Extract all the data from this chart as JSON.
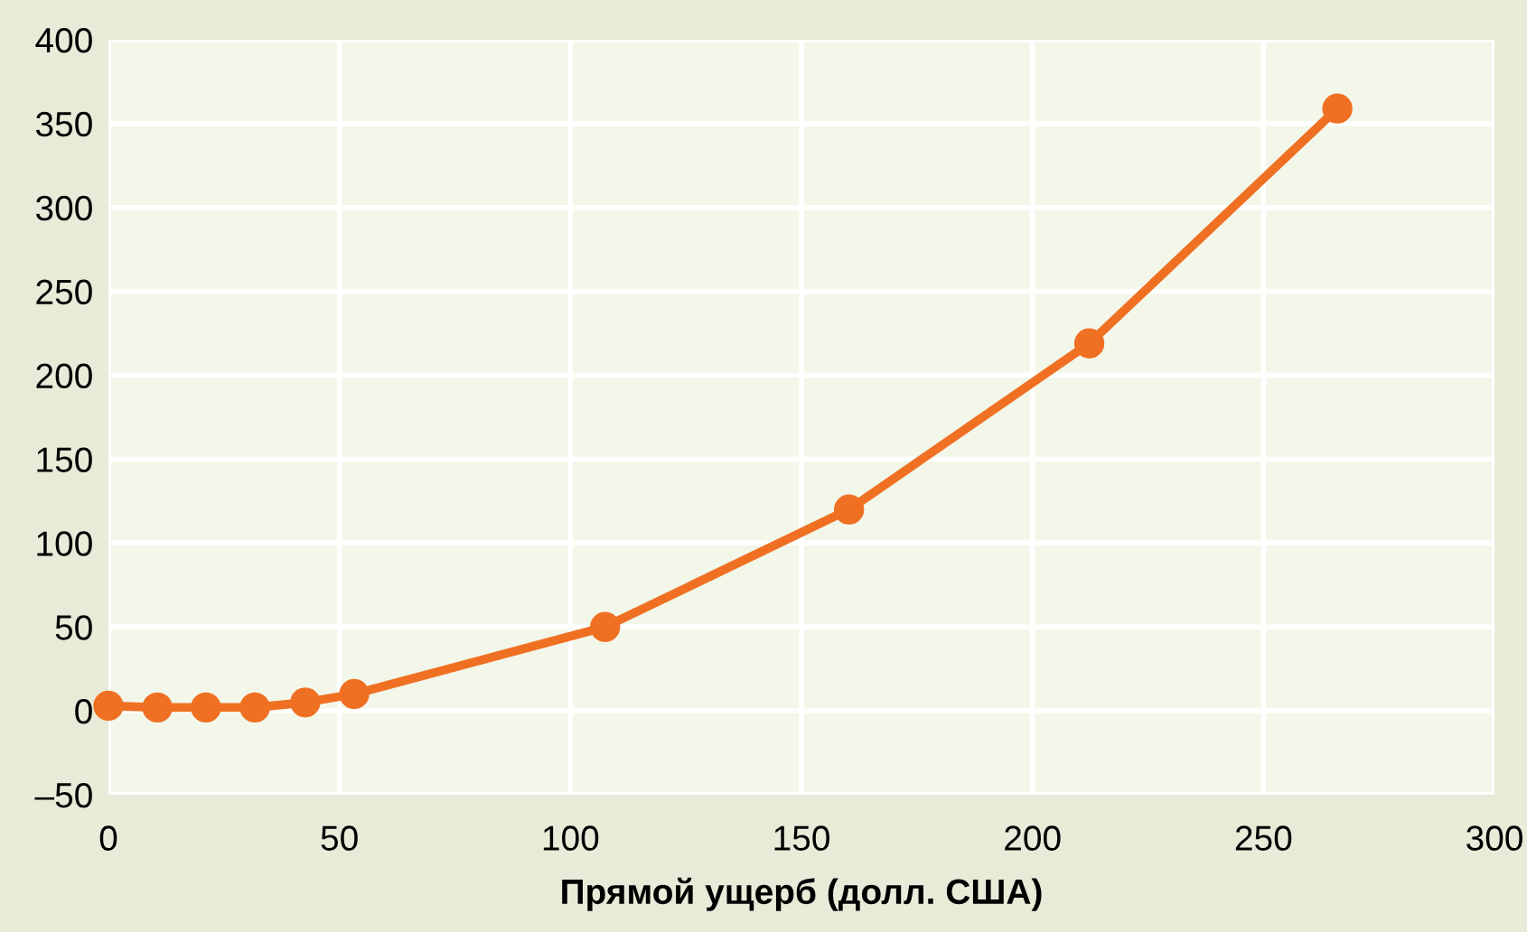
{
  "chart_data": {
    "type": "line",
    "xlabel": "Прямой ущерб (долл. США)",
    "x": [
      0,
      10.6,
      21.1,
      31.7,
      42.6,
      53.2,
      107.5,
      160.3,
      212.3,
      266
    ],
    "series": [
      {
        "color": "#f07023",
        "values": [
          3,
          2,
          2,
          2,
          5,
          10,
          50,
          120,
          219,
          359
        ]
      }
    ],
    "xlim": [
      0,
      300
    ],
    "xticks": [
      0,
      50,
      100,
      150,
      200,
      250,
      300
    ],
    "ylim": [
      -50,
      400
    ],
    "yticks": [
      {
        "value": -50,
        "label": "–50"
      },
      0,
      50,
      100,
      150,
      200,
      250,
      300,
      350,
      400
    ],
    "grid": true,
    "marker": "circle",
    "line_style": "solid"
  }
}
